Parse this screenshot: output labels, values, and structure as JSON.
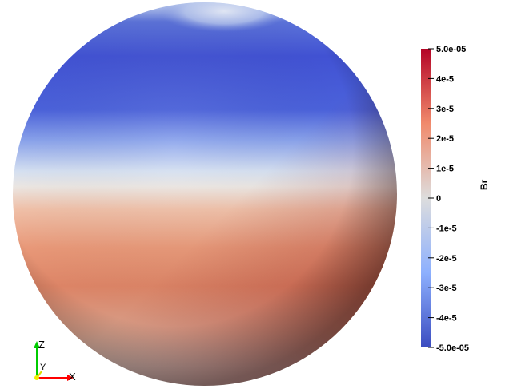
{
  "scalar_field": "Br",
  "colormap": {
    "name": "Cool to Warm",
    "min_color": "#3b4cc0",
    "mid_color": "#dddddd",
    "max_color": "#b40426"
  },
  "colorbar": {
    "title": "Br",
    "range": [
      -5e-05,
      5e-05
    ],
    "tick_labels": [
      {
        "value": 5e-05,
        "label": "5.0e-05"
      },
      {
        "value": 4e-05,
        "label": "4e-5"
      },
      {
        "value": 3e-05,
        "label": "3e-5"
      },
      {
        "value": 2e-05,
        "label": "2e-5"
      },
      {
        "value": 1e-05,
        "label": "1e-5"
      },
      {
        "value": 0,
        "label": "0"
      },
      {
        "value": -1e-05,
        "label": "-1e-5"
      },
      {
        "value": -2e-05,
        "label": "-2e-5"
      },
      {
        "value": -3e-05,
        "label": "-3e-5"
      },
      {
        "value": -4e-05,
        "label": "-4e-5"
      },
      {
        "value": -5e-05,
        "label": "-5.0e-05"
      }
    ]
  },
  "orientation_axes": {
    "x_label": "X",
    "y_label": "Y",
    "z_label": "Z",
    "x_color": "#ff0000",
    "y_color": "#ffff00",
    "z_color": "#00cc00"
  }
}
